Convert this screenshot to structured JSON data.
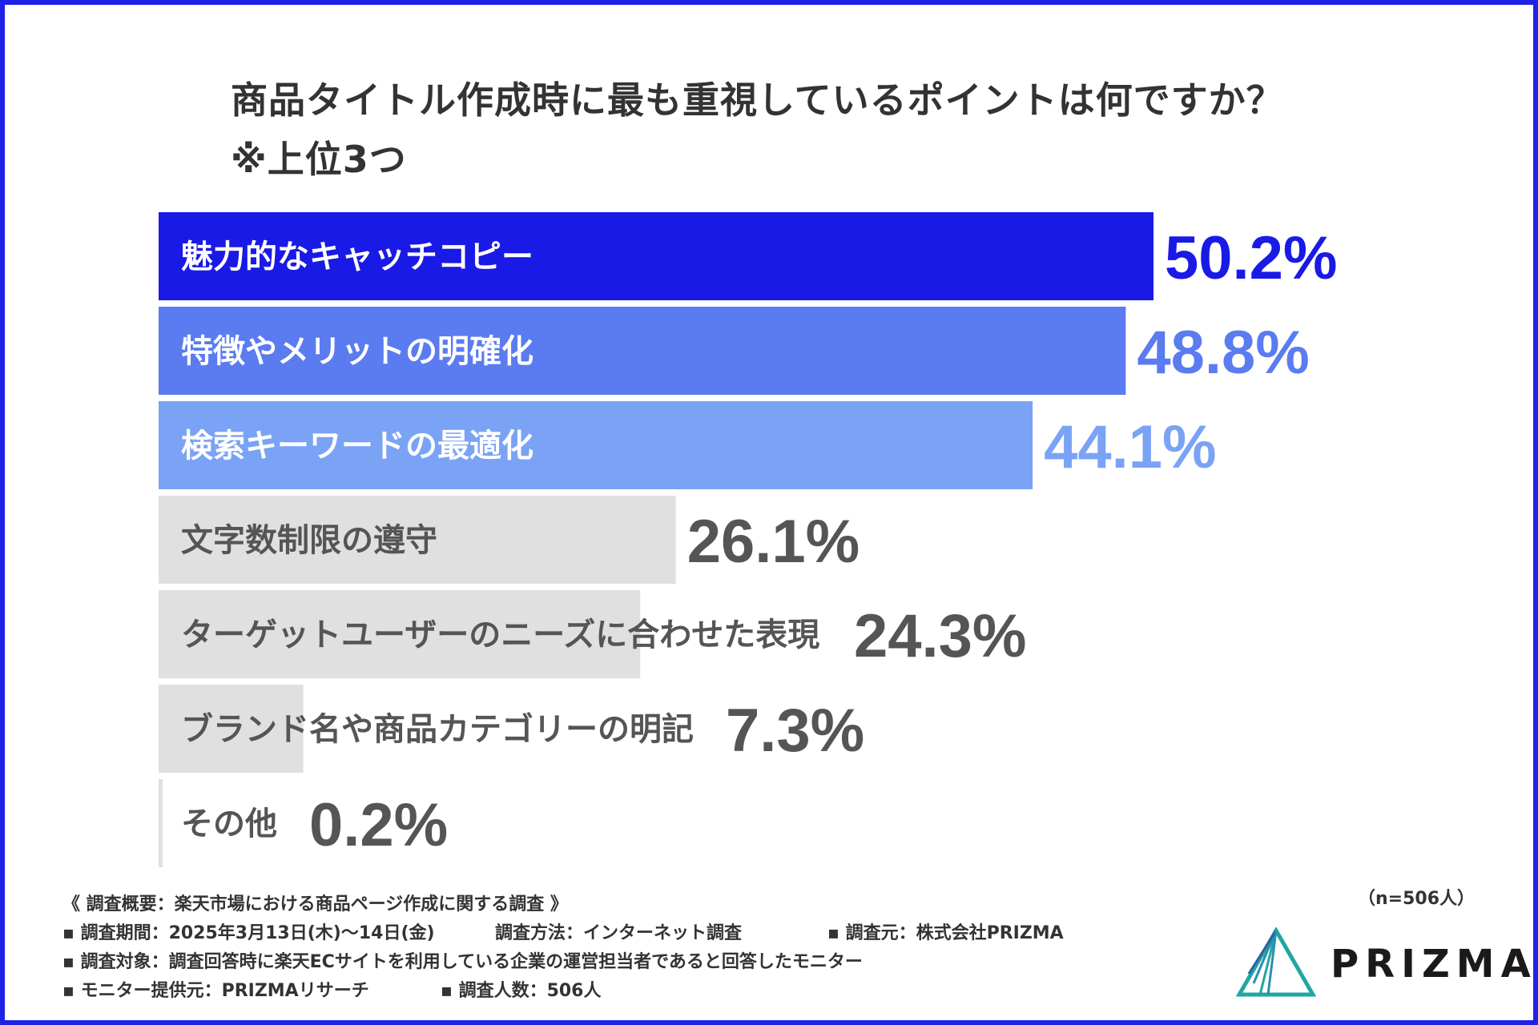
{
  "title": {
    "line1": "商品タイトル作成時に最も重視しているポイントは何ですか？",
    "line2": "※上位3つ"
  },
  "chart_data": {
    "type": "bar",
    "orientation": "horizontal",
    "categories": [
      "魅力的なキャッチコピー",
      "特徴やメリットの明確化",
      "検索キーワードの最適化",
      "文字数制限の遵守",
      "ターゲットユーザーのニーズに合わせた表現",
      "ブランド名や商品カテゴリーの明記",
      "その他"
    ],
    "values": [
      50.2,
      48.8,
      44.1,
      26.1,
      24.3,
      7.3,
      0.2
    ],
    "value_labels": [
      "50.2%",
      "48.8%",
      "44.1%",
      "26.1%",
      "24.3%",
      "7.3%",
      "0.2%"
    ],
    "bar_colors": [
      "#1a1ae6",
      "#5b7bf0",
      "#7aa3f5",
      "#e0e0e0",
      "#e0e0e0",
      "#e0e0e0",
      "#e0e0e0"
    ],
    "value_colors": [
      "#1a1ae6",
      "#5b7bf0",
      "#7aa3f5",
      "#555555",
      "#555555",
      "#555555",
      "#555555"
    ],
    "label_colors": [
      "#ffffff",
      "#ffffff",
      "#ffffff",
      "#555555",
      "#555555",
      "#555555",
      "#555555"
    ],
    "xlim": [
      0,
      50.2
    ],
    "grid": false,
    "legend": "none"
  },
  "notes": {
    "survey_title": "《 調査概要：楽天市場における商品ページ作成に関する調査 》",
    "period": "▪ 調査期間：2025年3月13日(木)〜14日(金)",
    "method": "調査方法：インターネット調査",
    "source": "▪ 調査元：株式会社PRIZMA",
    "target": "▪ 調査対象：調査回答時に楽天ECサイトを利用している企業の運営担当者であると回答したモニター",
    "provider": "▪ モニター提供元：PRIZMAリサーチ",
    "count": "▪ 調査人数：506人"
  },
  "sample_size": "（n=506人）",
  "logo": {
    "text": "PRIZMA",
    "icon": "prism-triangle-icon",
    "colors": [
      "#1fa7a0",
      "#2a5fa8"
    ]
  }
}
